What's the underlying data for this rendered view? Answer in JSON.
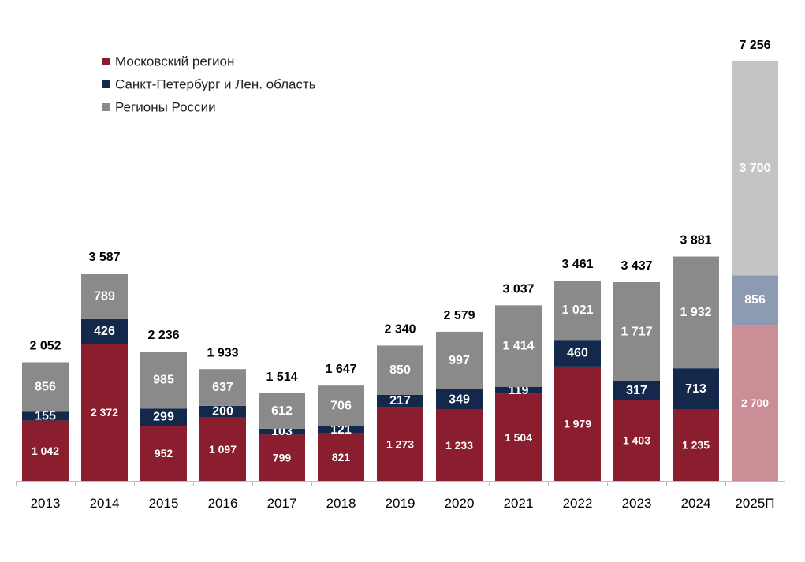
{
  "chart_data": {
    "type": "bar",
    "stacked": true,
    "title": "",
    "xlabel": "",
    "ylabel": "",
    "ylim": [
      0,
      7256
    ],
    "grid": false,
    "legend_position": "top-left",
    "categories": [
      "2013",
      "2014",
      "2015",
      "2016",
      "2017",
      "2018",
      "2019",
      "2020",
      "2021",
      "2022",
      "2023",
      "2024",
      "2025П"
    ],
    "series": [
      {
        "name": "Московский регион",
        "color": "#8b1e2e",
        "values": [
          1042,
          2372,
          952,
          1097,
          799,
          821,
          1273,
          1233,
          1504,
          1979,
          1403,
          1235,
          2700
        ],
        "labels": [
          "1 042",
          "2 372",
          "952",
          "1 097",
          "799",
          "821",
          "1 273",
          "1 233",
          "1 504",
          "1 979",
          "1 403",
          "1 235",
          "2 700"
        ]
      },
      {
        "name": "Санкт-Петербург и Лен. область",
        "color": "#13284a",
        "values": [
          155,
          426,
          299,
          200,
          103,
          121,
          217,
          349,
          119,
          460,
          317,
          713,
          856
        ],
        "labels": [
          "155",
          "426",
          "299",
          "200",
          "103",
          "121",
          "217",
          "349",
          "119",
          "460",
          "317",
          "713",
          "856"
        ]
      },
      {
        "name": "Регионы России",
        "color": "#8a8a8a",
        "values": [
          856,
          789,
          985,
          637,
          612,
          706,
          850,
          997,
          1414,
          1021,
          1717,
          1932,
          3700
        ],
        "labels": [
          "856",
          "789",
          "985",
          "637",
          "612",
          "706",
          "850",
          "997",
          "1 414",
          "1 021",
          "1 717",
          "1 932",
          "3 700"
        ]
      }
    ],
    "totals": [
      2052,
      3587,
      2236,
      1933,
      1514,
      1647,
      2340,
      2579,
      3037,
      3461,
      3437,
      3881,
      7256
    ],
    "total_labels": [
      "2 052",
      "3 587",
      "2 236",
      "1 933",
      "1 514",
      "1 647",
      "2 340",
      "2 579",
      "3 037",
      "3 461",
      "3 437",
      "3 881",
      "7 256"
    ],
    "forecast_index": 12,
    "forecast_colors": [
      "#cc8e96",
      "#8d9bb2",
      "#c4c4c4"
    ]
  }
}
